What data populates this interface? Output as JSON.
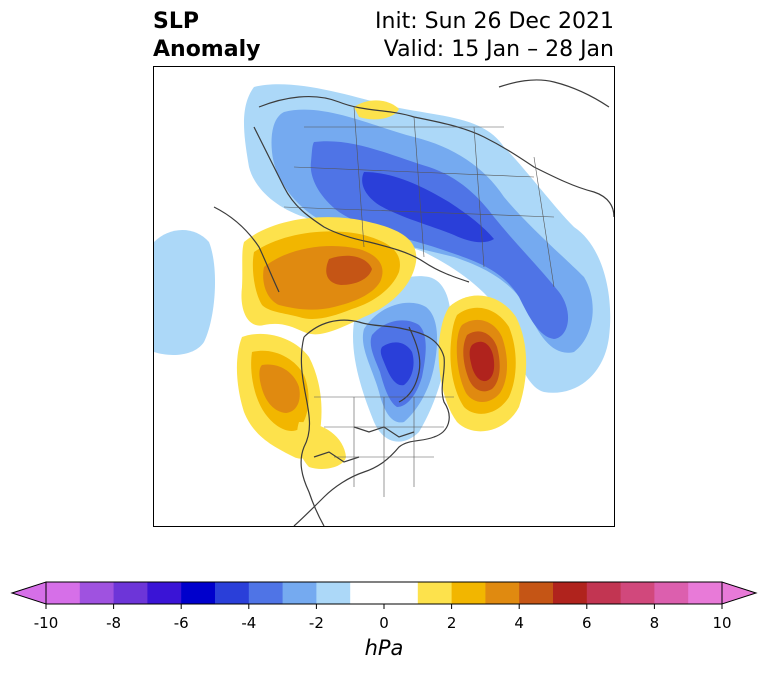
{
  "title": {
    "line1_left": "SLP",
    "line2_left": "Anomaly",
    "line1_right": "Init: Sun 26 Dec 2021",
    "line2_right": "Valid: 15 Jan – 28 Jan"
  },
  "map": {
    "region": "Northern Hemisphere polar view",
    "field": "sea level pressure anomaly",
    "features": [
      {
        "kind": "positive anomaly",
        "location": "Eastern North Atlantic / west of Europe",
        "peak_class": "5 to 6"
      },
      {
        "kind": "positive anomaly",
        "location": "Alaska / Bering region",
        "peak_class": "3 to 4"
      },
      {
        "kind": "positive anomaly",
        "location": "Northeast Pacific off western North America",
        "peak_class": "3 to 4"
      },
      {
        "kind": "negative anomaly",
        "location": "Hudson Bay / Canadian Arctic",
        "peak_class": "-5 to -6"
      },
      {
        "kind": "negative anomaly",
        "location": "Northern Siberia / Eurasian Arctic",
        "peak_class": "-4 to -5"
      },
      {
        "kind": "negative anomaly",
        "location": "Scandinavia / Barents region",
        "peak_class": "-3 to -4"
      }
    ]
  },
  "colorbar": {
    "label": "hPa",
    "ticks": [
      "-10",
      "-8",
      "-6",
      "-4",
      "-2",
      "0",
      "2",
      "4",
      "6",
      "8",
      "10"
    ],
    "colors": [
      "#d66fe8",
      "#9f52e0",
      "#6d35d8",
      "#3a14d6",
      "#0000cc",
      "#2a3fd9",
      "#4f74e6",
      "#75aaf0",
      "#acd8f8",
      "#ffffff",
      "#ffffff",
      "#fde24c",
      "#f2b600",
      "#e08a10",
      "#c55515",
      "#b0231d",
      "#c23552",
      "#d1487c",
      "#dc5fae",
      "#e87ad8"
    ],
    "under_color": "#d66fe8",
    "over_color": "#e87ad8"
  },
  "colors": {
    "neg1": "#acd8f8",
    "neg2": "#75aaf0",
    "neg3": "#4f74e6",
    "neg4": "#2a3fd9",
    "neg5": "#0000cc",
    "pos1": "#fde24c",
    "pos2": "#f2b600",
    "pos3": "#e08a10",
    "pos4": "#c55515",
    "pos5": "#b0231d"
  }
}
